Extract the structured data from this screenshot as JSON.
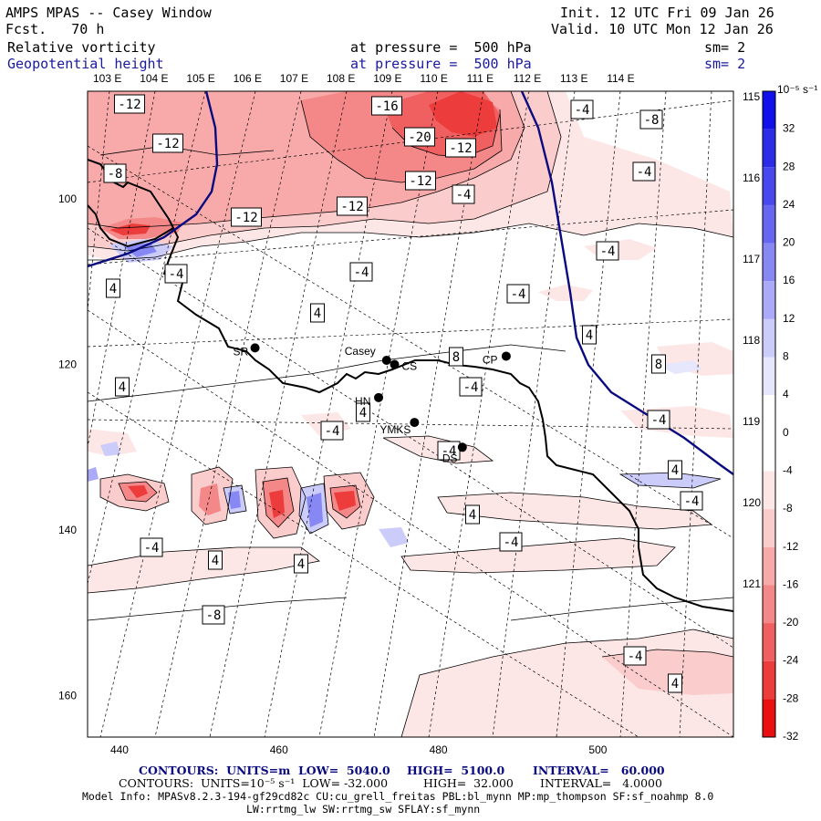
{
  "header": {
    "title": "AMPS MPAS -- Casey Window",
    "forecast": "Fcst.   70 h",
    "init": "Init. 12 UTC Fri 09 Jan 26",
    "valid": "Valid. 10 UTC Mon 12 Jan 26",
    "field1": "Relative vorticity",
    "field2": "Geopotential height",
    "pressure1": "at pressure =  500 hPa",
    "pressure2": "at pressure =  500 hPa",
    "sm1": "sm= 2",
    "sm2": "sm= 2"
  },
  "colors": {
    "height_contour": "#0a0a80",
    "negative_vorticity": "#e83232",
    "positive_vorticity": "#3232e0",
    "coastline": "#000000"
  },
  "chart_data": {
    "type": "heatmap",
    "title": "Relative vorticity at 500 hPa with geopotential height contours",
    "x_ticks": [
      "440",
      "460",
      "480",
      "500"
    ],
    "y_ticks": [
      "100",
      "120",
      "140",
      "160"
    ],
    "xlim": [
      436,
      517
    ],
    "ylim": [
      165,
      87
    ],
    "top_longitudes": [
      "103 E",
      "104 E",
      "105 E",
      "106 E",
      "107 E",
      "108 E",
      "109 E",
      "110 E",
      "111 E",
      "112 E",
      "113 E",
      "114 E"
    ],
    "right_longitudes": [
      "115 E",
      "116 E",
      "117 E",
      "118 E",
      "119 E",
      "120 E",
      "121 E"
    ],
    "colorbar": {
      "units": "10⁻⁵ s⁻¹",
      "levels": [
        "32",
        "28",
        "24",
        "20",
        "16",
        "12",
        "8",
        "4",
        "0",
        "-4",
        "-8",
        "-12",
        "-16",
        "-20",
        "-24",
        "-28",
        "-32"
      ],
      "colors": [
        "#1010e8",
        "#2c2ce8",
        "#4848ec",
        "#6666f0",
        "#8888f4",
        "#aaaaf8",
        "#ccccfa",
        "#e6e6fd",
        "#ffffff",
        "#ffffff",
        "#fde6e6",
        "#fbcccc",
        "#f8aaaa",
        "#f48888",
        "#f06060",
        "#ec3c3c",
        "#e81010"
      ]
    },
    "contour_labels": [
      "-12",
      "-16",
      "-4",
      "-8",
      "-12",
      "-20",
      "-12",
      "-8",
      "-12",
      "-12",
      "-12",
      "-4",
      "-4",
      "-4",
      "-4",
      "-4",
      "-4",
      "4",
      "4",
      "4",
      "8",
      "8",
      "4",
      "-4",
      "4",
      "-4",
      "-4",
      "-4",
      "4",
      "-4",
      "4",
      "-4",
      "4",
      "4",
      "-4",
      "-8",
      "-4",
      "4"
    ],
    "stations": [
      {
        "name": "SR",
        "x": 457,
        "y": 118
      },
      {
        "name": "Casey",
        "x": 473.5,
        "y": 119.5
      },
      {
        "name": "CS",
        "x": 474.5,
        "y": 120
      },
      {
        "name": "CP",
        "x": 488.5,
        "y": 119
      },
      {
        "name": "HN",
        "x": 472.5,
        "y": 124
      },
      {
        "name": "YMKS",
        "x": 477,
        "y": 127
      },
      {
        "name": "DS",
        "x": 483,
        "y": 130
      }
    ]
  },
  "footer": {
    "line1_units": "CONTOURS:  UNITS=m  LOW=  5040.0",
    "line1_high": "HIGH=  5100.0",
    "line1_interval": "INTERVAL=   60.000",
    "line2_units": "CONTOURS:  UNITS=10⁻⁵ s⁻¹  LOW= -32.000",
    "line2_high": "HIGH=  32.000",
    "line2_interval": "INTERVAL=   4.0000",
    "model_info": "Model Info: MPASv8.2.3-194-gf29cd82c CU:cu_grell_freitas PBL:bl_mynn MP:mp_thompson SF:sf_noahmp 8.0",
    "model_info2": "LW:rrtmg_lw SW:rrtmg_sw SFLAY:sf_mynn"
  }
}
